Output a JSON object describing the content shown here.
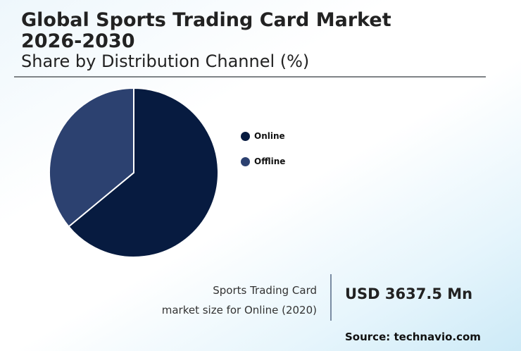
{
  "header": {
    "title_line1": "Global Sports Trading Card Market",
    "title_line2": "2026-2030",
    "subtitle": "Share by Distribution Channel (%)"
  },
  "legend": [
    {
      "label": "Online",
      "color": "#071b40"
    },
    {
      "label": "Offline",
      "color": "#2c4170"
    }
  ],
  "stat": {
    "label_line1": "Sports Trading Card",
    "label_line2": "market size for Online (2020)",
    "value": "USD 3637.5 Mn"
  },
  "source": "Source: technavio.com",
  "chart_data": {
    "type": "pie",
    "title": "Global Sports Trading Card Market 2026-2030",
    "subtitle": "Share by Distribution Channel (%)",
    "categories": [
      "Online",
      "Offline"
    ],
    "values": [
      64,
      36
    ],
    "colors": [
      "#071b40",
      "#2c4170"
    ],
    "start_angle": "12 o'clock, clockwise",
    "legend_position": "right"
  }
}
